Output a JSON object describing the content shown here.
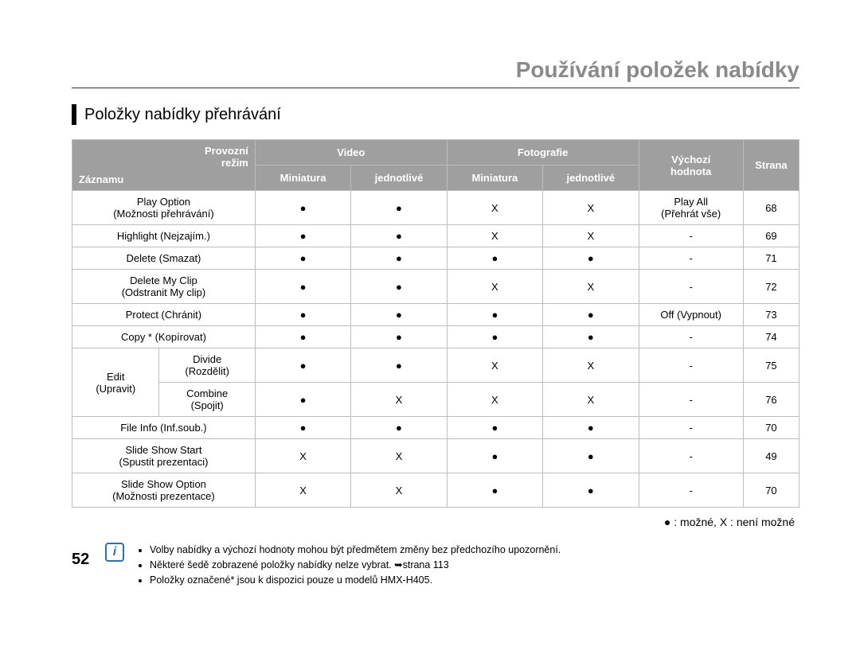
{
  "chapter_title": "Používání položek nabídky",
  "section_title": "Položky nabídky přehrávání",
  "legend": "● : možné, X : není možné",
  "page_number": "52",
  "header": {
    "mode_line1": "Provozní",
    "mode_line2": "režim",
    "record": "Záznamu",
    "video": "Video",
    "photo": "Fotografie",
    "default_line1": "Výchozí",
    "default_line2": "hodnota",
    "page": "Strana",
    "thumb": "Miniatura",
    "single": "jednotlivé"
  },
  "rows": [
    {
      "label": "Play Option\n(Možnosti přehrávání)",
      "v_thumb": "●",
      "v_single": "●",
      "p_thumb": "X",
      "p_single": "X",
      "default": "Play All\n(Přehrát vše)",
      "page": "68"
    },
    {
      "label": "Highlight (Nejzajím.)",
      "v_thumb": "●",
      "v_single": "●",
      "p_thumb": "X",
      "p_single": "X",
      "default": "-",
      "page": "69"
    },
    {
      "label": "Delete (Smazat)",
      "v_thumb": "●",
      "v_single": "●",
      "p_thumb": "●",
      "p_single": "●",
      "default": "-",
      "page": "71"
    },
    {
      "label": "Delete My Clip\n(Odstranit My clip)",
      "v_thumb": "●",
      "v_single": "●",
      "p_thumb": "X",
      "p_single": "X",
      "default": "-",
      "page": "72"
    },
    {
      "label": "Protect (Chránit)",
      "v_thumb": "●",
      "v_single": "●",
      "p_thumb": "●",
      "p_single": "●",
      "default": "Off (Vypnout)",
      "page": "73"
    },
    {
      "label": "Copy * (Kopírovat)",
      "v_thumb": "●",
      "v_single": "●",
      "p_thumb": "●",
      "p_single": "●",
      "default": "-",
      "page": "74"
    }
  ],
  "edit_group": {
    "label": "Edit\n(Upravit)",
    "rows": [
      {
        "sub": "Divide\n(Rozdělit)",
        "v_thumb": "●",
        "v_single": "●",
        "p_thumb": "X",
        "p_single": "X",
        "default": "-",
        "page": "75"
      },
      {
        "sub": "Combine\n(Spojit)",
        "v_thumb": "●",
        "v_single": "X",
        "p_thumb": "X",
        "p_single": "X",
        "default": "-",
        "page": "76"
      }
    ]
  },
  "rows_after": [
    {
      "label": "File Info (Inf.soub.)",
      "v_thumb": "●",
      "v_single": "●",
      "p_thumb": "●",
      "p_single": "●",
      "default": "-",
      "page": "70"
    },
    {
      "label": "Slide Show Start\n(Spustit prezentaci)",
      "v_thumb": "X",
      "v_single": "X",
      "p_thumb": "●",
      "p_single": "●",
      "default": "-",
      "page": "49"
    },
    {
      "label": "Slide Show Option\n(Možnosti prezentace)",
      "v_thumb": "X",
      "v_single": "X",
      "p_thumb": "●",
      "p_single": "●",
      "default": "-",
      "page": "70"
    }
  ],
  "notes": [
    "Volby nabídky a výchozí hodnoty mohou být předmětem změny bez předchozího upozornění.",
    "Některé šedě zobrazené položky nabídky nelze vybrat. ➥strana 113",
    "Položky označené* jsou k dispozici pouze u modelů HMX-H405."
  ],
  "colors": {
    "header_bg": "#9f9f9f",
    "header_fg": "#ffffff",
    "border": "#bdbdbd",
    "chapter_fg": "#8a8a8a",
    "note_icon": "#2f6fb3"
  }
}
